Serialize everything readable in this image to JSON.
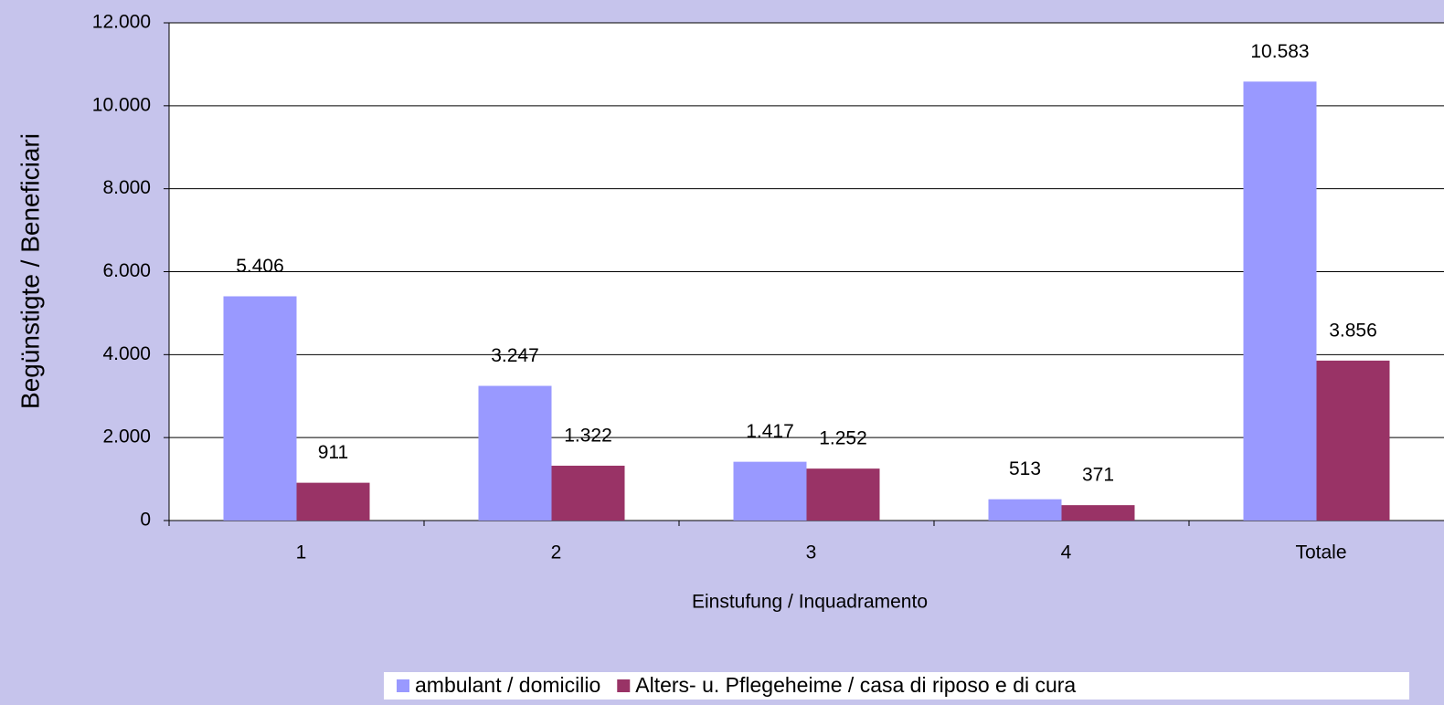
{
  "chart_data": {
    "type": "bar",
    "categories": [
      "1",
      "2",
      "3",
      "4",
      "Totale"
    ],
    "series": [
      {
        "name": "ambulant / domicilio",
        "color": "#9999ff",
        "values": [
          5406,
          3247,
          1417,
          513,
          10583
        ],
        "value_labels": [
          "5.406",
          "3.247",
          "1.417",
          "513",
          "10.583"
        ]
      },
      {
        "name": "Alters- u. Pflegeheime / casa di riposo e di cura",
        "color": "#993366",
        "values": [
          911,
          1322,
          1252,
          371,
          3856
        ],
        "value_labels": [
          "911",
          "1.322",
          "1.252",
          "371",
          "3.856"
        ]
      }
    ],
    "xlabel": "Einstufung / Inquadramento",
    "ylabel": "Begünstigte / Beneficiari",
    "ylim": [
      0,
      12000
    ],
    "yticks": [
      0,
      {
        "value": 2000,
        "label": "2.000"
      },
      {
        "value": 4000,
        "label": "4.000"
      },
      {
        "value": 6000,
        "label": "6.000"
      },
      {
        "value": 8000,
        "label": "8.000"
      },
      {
        "value": 10000,
        "label": "10.000"
      },
      {
        "value": 12000,
        "label": "12.000"
      }
    ],
    "grid": true,
    "legend": "bottom"
  }
}
